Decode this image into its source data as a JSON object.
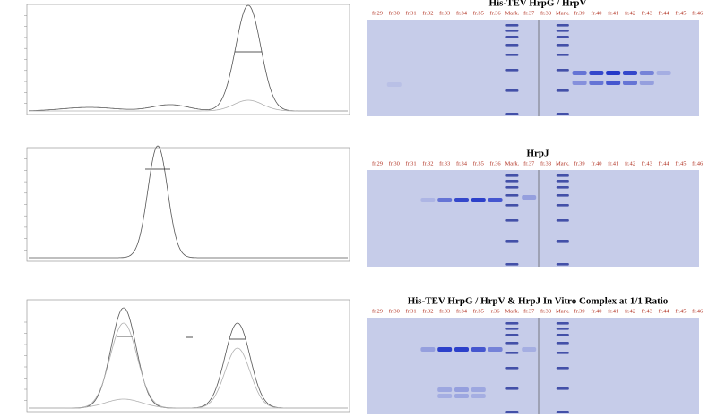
{
  "gels": [
    {
      "title": "His-TEV HrpG / HrpV",
      "lanes": [
        "fr.29",
        "fr.30",
        "fr.31",
        "fr.32",
        "fr.33",
        "fr.34",
        "fr.35",
        "fr.36",
        "Mark.",
        "fr.37",
        "fr.38",
        "Mark.",
        "fr.39",
        "fr.40",
        "fr.41",
        "fr.42",
        "fr.43",
        "fr.44",
        "fr.45",
        "fr.46"
      ]
    },
    {
      "title": "HrpJ",
      "lanes": [
        "fr.29",
        "fr.30",
        "fr.31",
        "fr.32",
        "fr.33",
        "fr.34",
        "fr.35",
        "fr.36",
        "Mark.",
        "fr.37",
        "fr.38",
        "Mark.",
        "fr.39",
        "fr.40",
        "fr.41",
        "fr.42",
        "fr.43",
        "fr.44",
        "fr.45",
        "fr.46"
      ]
    },
    {
      "title": "His-TEV HrpG / HrpV & HrpJ In Vitro Complex at 1/1 Ratio",
      "lanes": [
        "fr.29",
        "fr.30",
        "fr.31",
        "fr.32",
        "fr.33",
        "fr.34",
        "fr.35",
        "r.36",
        "Mark.",
        "fr.37",
        "fr.38",
        "Mark.",
        "fr.39",
        "fr.40",
        "fr.41",
        "fr.42",
        "fr.43",
        "fr.44",
        "fr.45",
        "fr.46"
      ]
    }
  ]
}
